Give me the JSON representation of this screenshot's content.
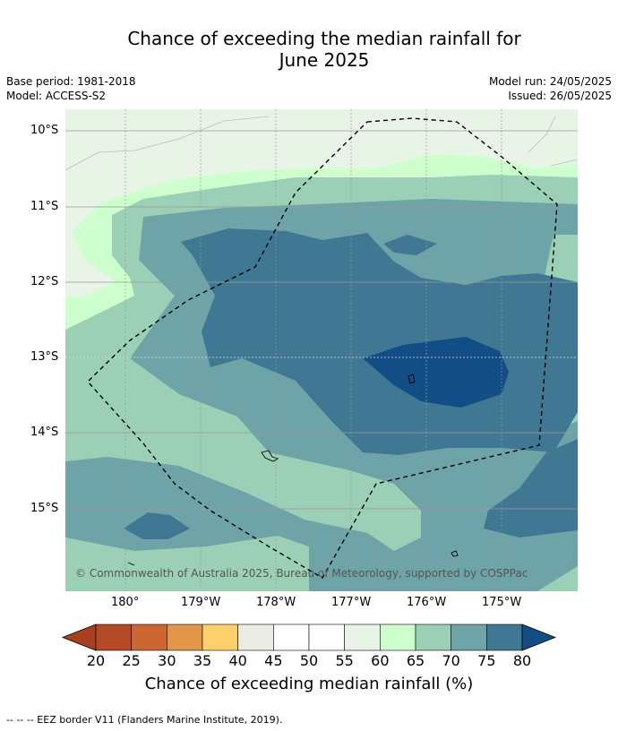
{
  "title_line1": "Chance of exceeding the median rainfall for",
  "title_line2": "June 2025",
  "meta": {
    "base_period": "Base period: 1981-2018",
    "model": "Model: ACCESS-S2",
    "model_run": "Model run: 24/05/2025",
    "issued": "Issued: 26/05/2025"
  },
  "map": {
    "lat_labels": [
      "10°S",
      "11°S",
      "12°S",
      "13°S",
      "14°S",
      "15°S"
    ],
    "lon_labels": [
      "180°",
      "179°W",
      "178°W",
      "177°W",
      "176°W",
      "175°W"
    ],
    "copyright": "© Commonwealth of Australia 2025, Bureau of Meteorology, supported by COSPPac"
  },
  "colorbar": {
    "ticks": [
      "20",
      "25",
      "30",
      "35",
      "40",
      "45",
      "50",
      "55",
      "60",
      "65",
      "70",
      "75",
      "80"
    ],
    "colors": [
      "#a8401f",
      "#b34a25",
      "#cc6633",
      "#e2964a",
      "#fdd06b",
      "#ebebe6",
      "#ffffff",
      "#ffffff",
      "#e8f5e6",
      "#ccffcc",
      "#9bd0b6",
      "#6ea4a8",
      "#407894",
      "#134d85"
    ],
    "label": "Chance of exceeding median rainfall (%)"
  },
  "footer": "-- -- -- EEZ border V11 (Flanders Marine Institute, 2019)."
}
